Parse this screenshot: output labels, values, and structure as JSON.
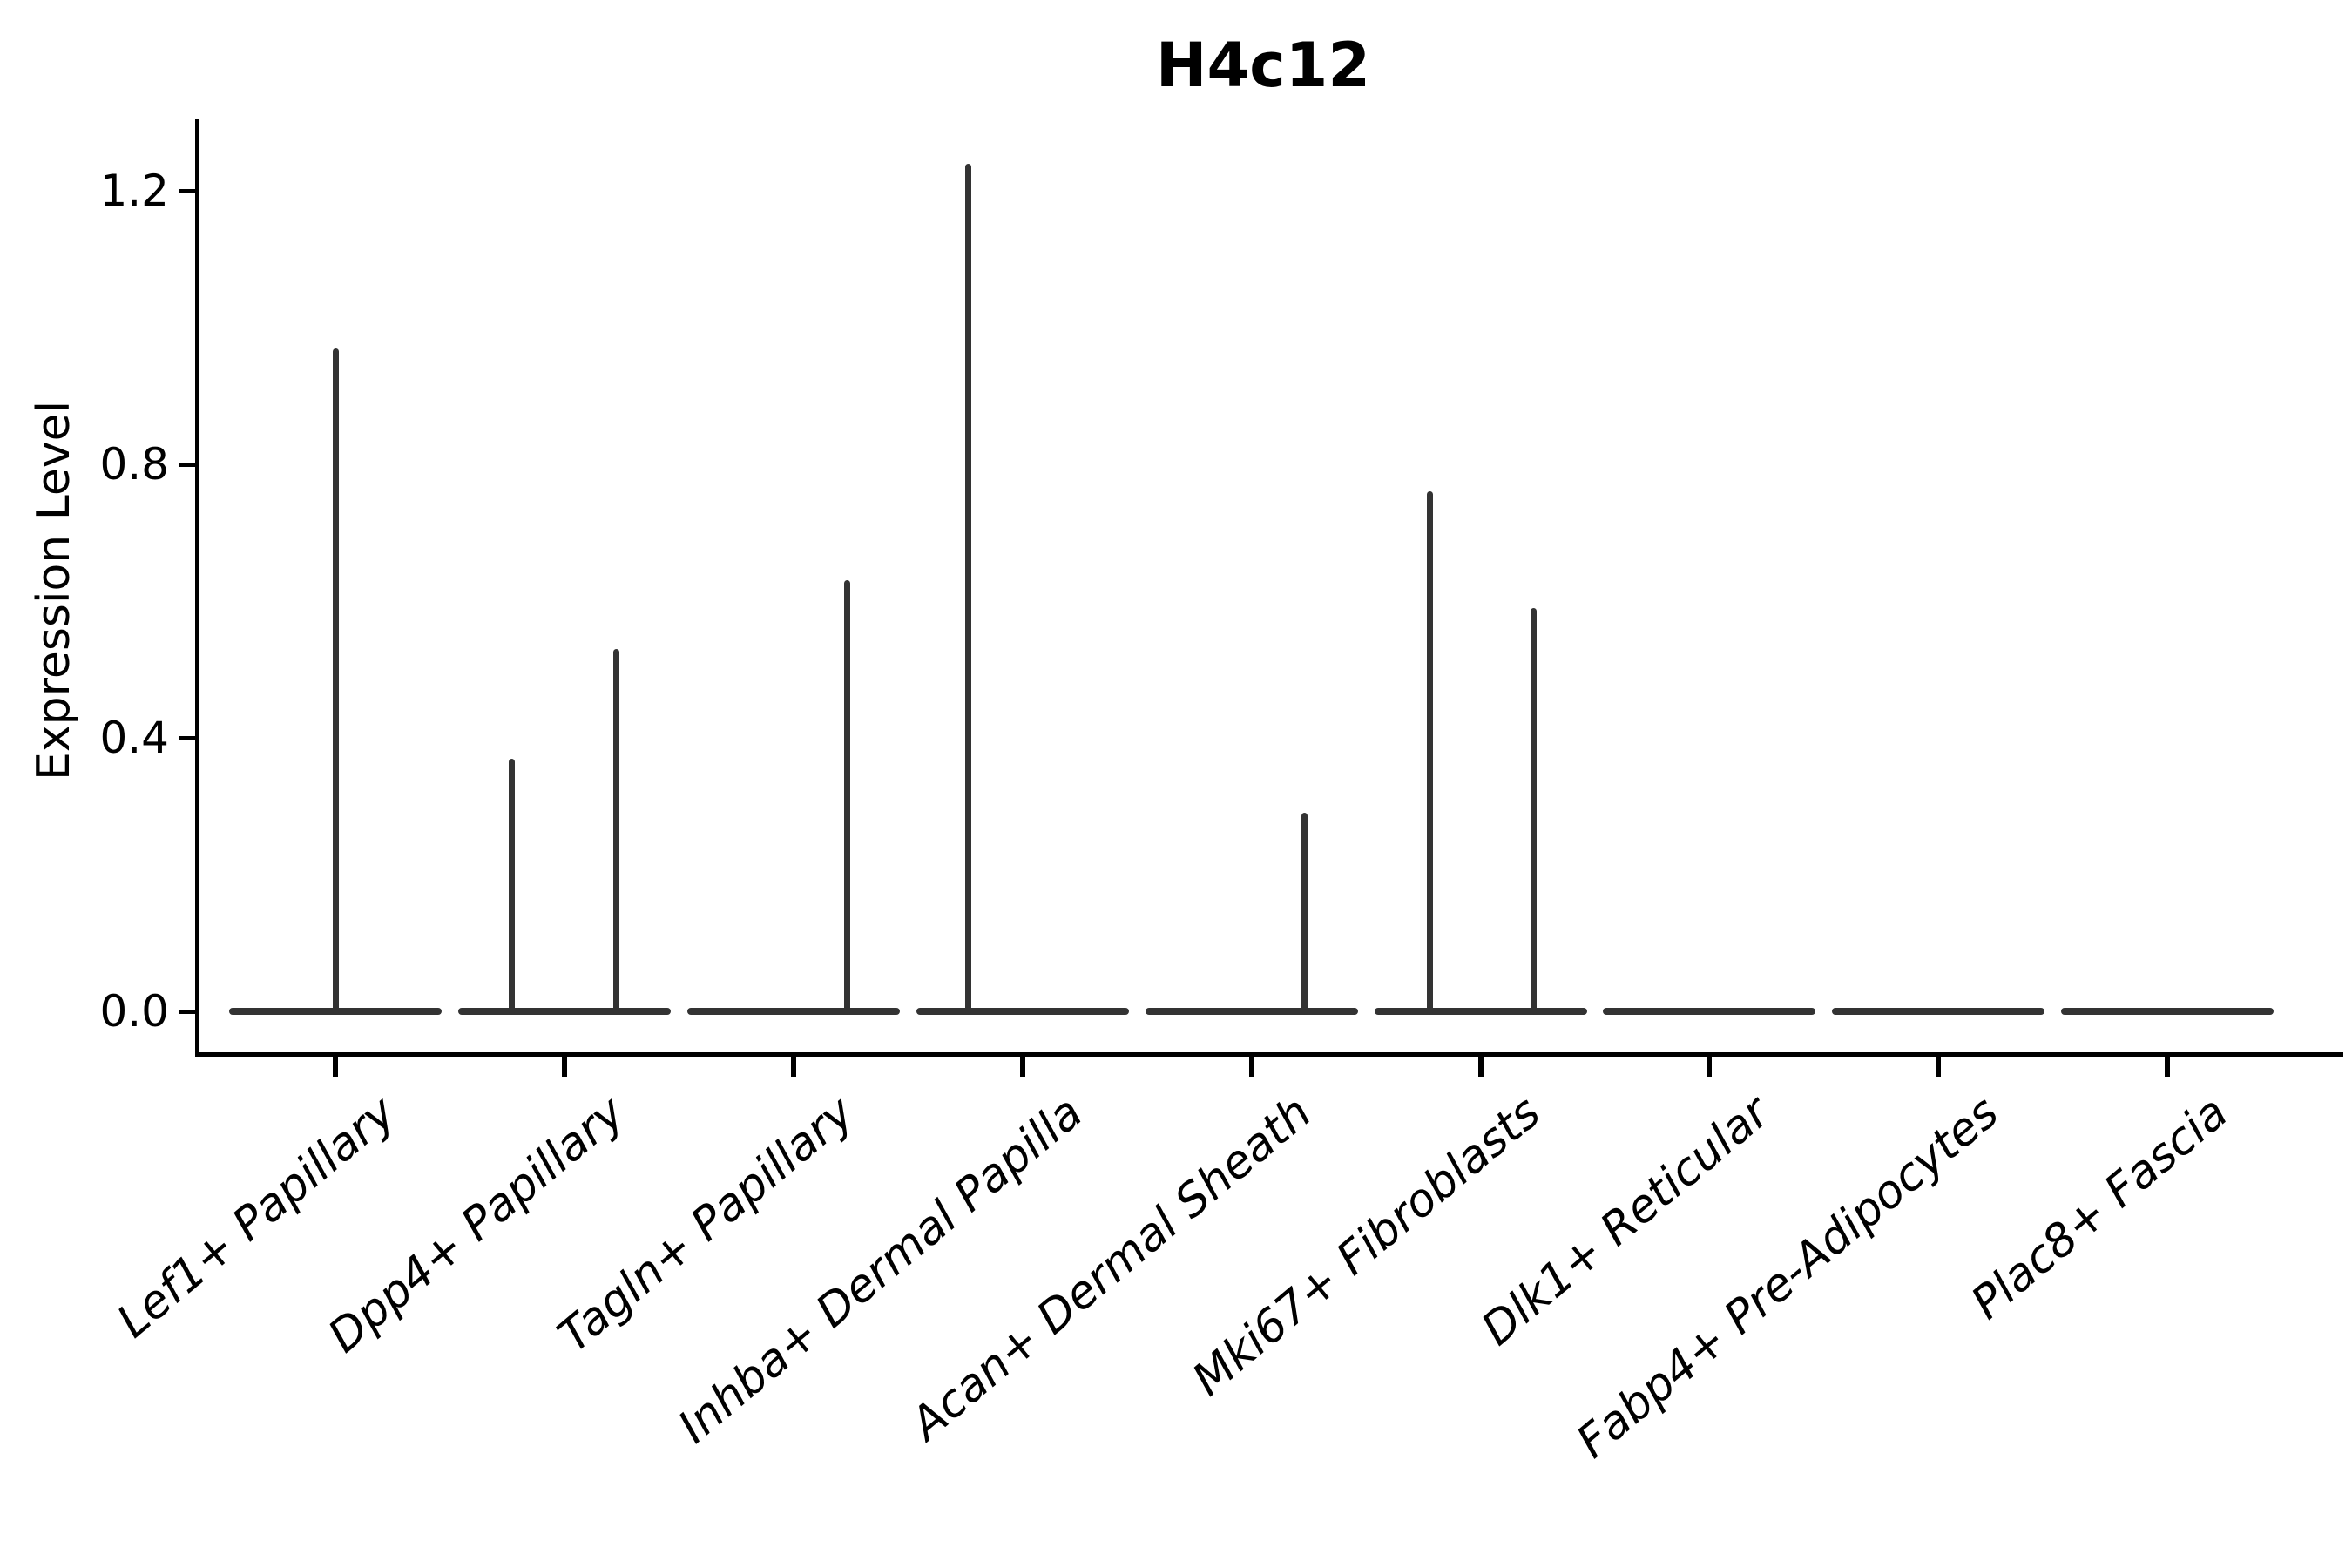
{
  "title": "H4c12",
  "y_axis": {
    "label": "Expression Level",
    "tick_labels": [
      "0.0",
      "0.4",
      "0.8",
      "1.2"
    ]
  },
  "chart_data": {
    "type": "violin",
    "title": "H4c12",
    "xlabel": "",
    "ylabel": "Expression Level",
    "ylim": [
      -0.065,
      1.3
    ],
    "yticks": [
      0.0,
      0.4,
      0.8,
      1.2
    ],
    "ytick_labels": [
      "0.0",
      "0.4",
      "0.8",
      "1.2"
    ],
    "grid": false,
    "legend": "none",
    "violin_color": "#333333",
    "axis_color": "#000000",
    "baseline_value": 0.0,
    "categories": [
      "Lef1+ Papillary",
      "Dpp4+ Papillary",
      "Tagln+ Papillary",
      "Inhba+ Dermal Papilla",
      "Acan+ Dermal Sheath",
      "Mki67+ Fibroblasts",
      "Dlk1+ Reticular",
      "Fabp4+ Pre-Adipocytes",
      "Plac8+ Fascia"
    ],
    "series": [
      {
        "category": "Lef1+ Papillary",
        "max_expression": 0.97,
        "needles": [
          {
            "dx": 0,
            "value": 0.97
          }
        ]
      },
      {
        "category": "Dpp4+ Papillary",
        "max_expression": 0.53,
        "needles": [
          {
            "dx": -60,
            "value": 0.37
          },
          {
            "dx": 60,
            "value": 0.53
          }
        ]
      },
      {
        "category": "Tagln+ Papillary",
        "max_expression": 0.63,
        "needles": [
          {
            "dx": 62,
            "value": 0.63
          }
        ]
      },
      {
        "category": "Inhba+ Dermal Papilla",
        "max_expression": 1.24,
        "needles": [
          {
            "dx": -62,
            "value": 1.24
          }
        ]
      },
      {
        "category": "Acan+ Dermal Sheath",
        "max_expression": 0.29,
        "needles": [
          {
            "dx": 61,
            "value": 0.29
          }
        ]
      },
      {
        "category": "Mki67+ Fibroblasts",
        "max_expression": 0.76,
        "needles": [
          {
            "dx": -58,
            "value": 0.76
          },
          {
            "dx": 61,
            "value": 0.59
          }
        ]
      },
      {
        "category": "Dlk1+ Reticular",
        "max_expression": 0.0,
        "needles": []
      },
      {
        "category": "Fabp4+ Pre-Adipocytes",
        "max_expression": 0.0,
        "needles": []
      },
      {
        "category": "Plac8+ Fascia",
        "max_expression": 0.0,
        "needles": []
      }
    ]
  }
}
